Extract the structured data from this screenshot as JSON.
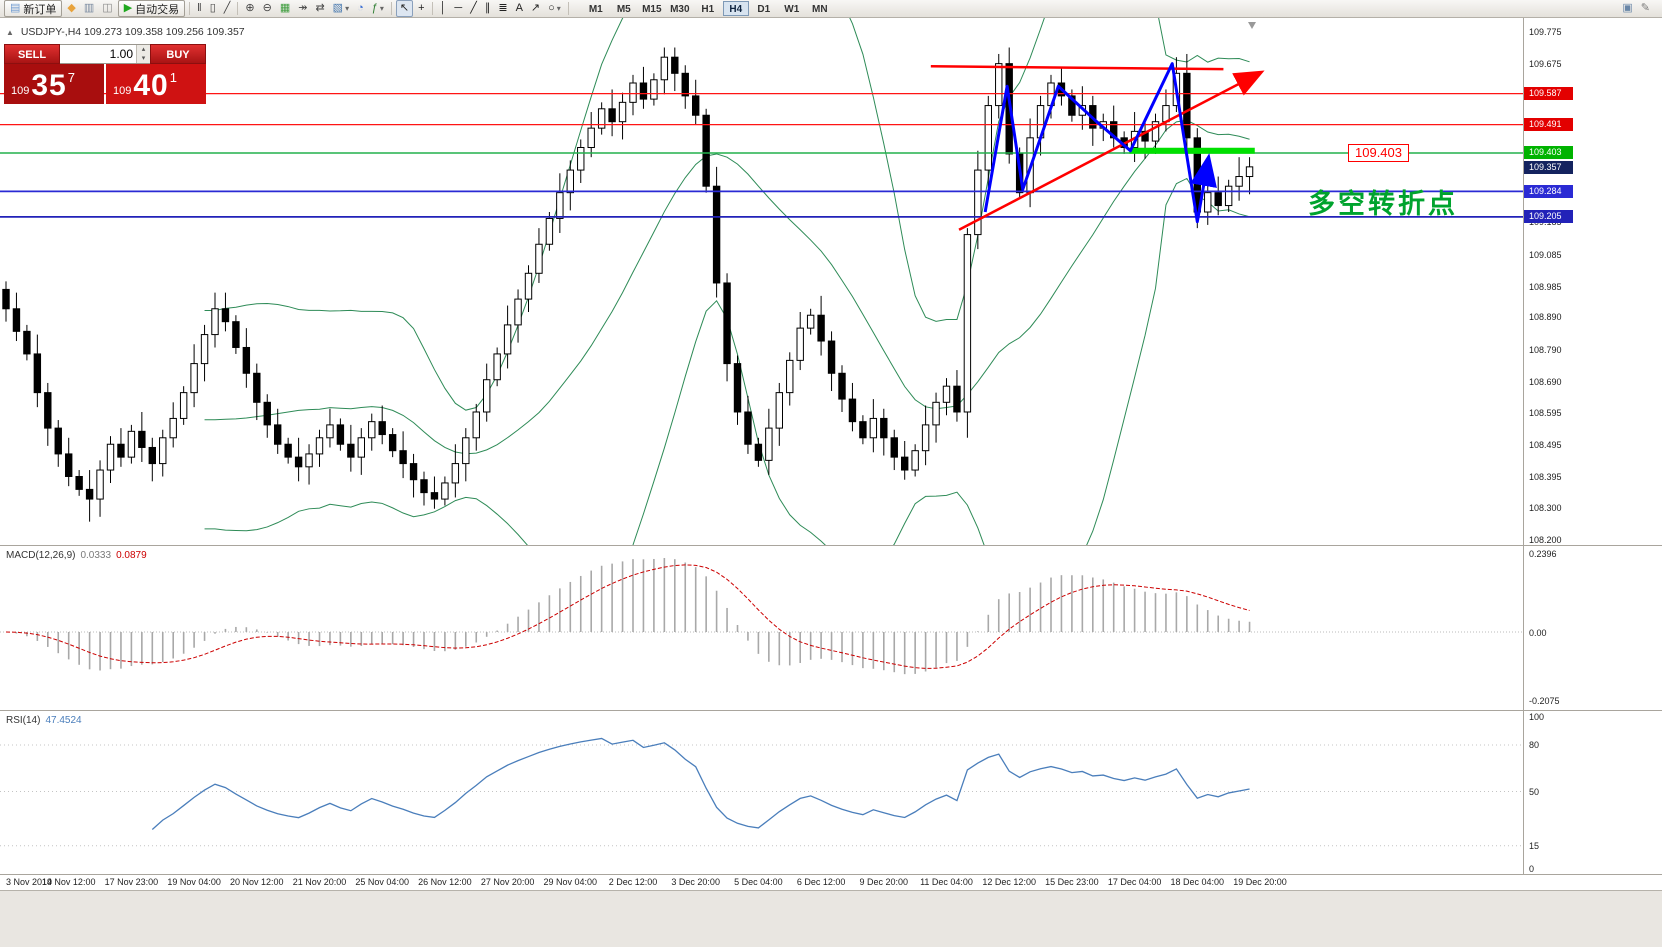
{
  "toolbar": {
    "items_left": [
      {
        "name": "new-order-button",
        "glyph": "▤",
        "glyph_color": "#6f9bd1",
        "label": "新订单",
        "button": true
      },
      {
        "name": "metaeditor-icon",
        "glyph": "◆",
        "glyph_color": "#e8a33d"
      },
      {
        "name": "market-watch-icon",
        "glyph": "▥",
        "glyph_color": "#7a8aa0"
      },
      {
        "name": "data-window-icon",
        "glyph": "◫",
        "glyph_color": "#8a8a8a"
      },
      {
        "name": "autotrading-button",
        "glyph": "▶",
        "glyph_color": "#1fa81f",
        "label": "自动交易",
        "button": true
      },
      {
        "sep": true
      },
      {
        "name": "bar-chart-icon",
        "glyph": "‖",
        "glyph_color": "#444444"
      },
      {
        "name": "candlestick-chart-icon",
        "glyph": "▯",
        "glyph_color": "#444444"
      },
      {
        "name": "line-chart-icon",
        "glyph": "╱",
        "glyph_color": "#444444"
      },
      {
        "sep": true
      },
      {
        "name": "zoom-in-icon",
        "glyph": "⊕",
        "glyph_color": "#444444"
      },
      {
        "name": "zoom-out-icon",
        "glyph": "⊖",
        "glyph_color": "#444444"
      },
      {
        "name": "tile-windows-icon",
        "glyph": "▦",
        "glyph_color": "#3c9c3c"
      },
      {
        "name": "auto-scroll-icon",
        "glyph": "↠",
        "glyph_color": "#444444"
      },
      {
        "name": "chart-shift-icon",
        "glyph": "⇄",
        "glyph_color": "#444444"
      },
      {
        "name": "profiles-icon",
        "glyph": "▧",
        "glyph_color": "#4a7ab0",
        "caret": true
      },
      {
        "name": "period-clock-icon",
        "glyph": "◔",
        "glyph_color": "#3b6fd4"
      },
      {
        "name": "indicators-icon",
        "glyph": "ƒ",
        "glyph_color": "#2e7d32",
        "caret": true
      },
      {
        "sep": true
      },
      {
        "name": "cursor-icon",
        "glyph": "↖",
        "glyph_color": "#222222",
        "active": true
      },
      {
        "name": "crosshair-icon",
        "glyph": "+",
        "glyph_color": "#222222"
      },
      {
        "sep": true
      },
      {
        "name": "vertical-line-icon",
        "glyph": "│",
        "glyph_color": "#222222"
      },
      {
        "name": "horizontal-line-icon",
        "glyph": "─",
        "glyph_color": "#222222"
      },
      {
        "name": "trendline-icon",
        "glyph": "╱",
        "glyph_color": "#222222"
      },
      {
        "name": "equidistant-channel-icon",
        "glyph": "∥",
        "glyph_color": "#222222"
      },
      {
        "name": "fibonacci-icon",
        "glyph": "≣",
        "glyph_color": "#222222"
      },
      {
        "name": "text-icon",
        "glyph": "A",
        "glyph_color": "#222222"
      },
      {
        "name": "arrows-icon",
        "glyph": "↗",
        "glyph_color": "#222222"
      },
      {
        "name": "shapes-icon",
        "glyph": "○",
        "glyph_color": "#222222",
        "caret": true
      },
      {
        "sep": true
      }
    ],
    "timeframes": [
      "M1",
      "M5",
      "M15",
      "M30",
      "H1",
      "H4",
      "D1",
      "W1",
      "MN"
    ],
    "active_timeframe": "H4",
    "items_right": [
      {
        "name": "layout-icon",
        "glyph": "▣",
        "glyph_color": "#6a87a8"
      },
      {
        "name": "compose-icon",
        "glyph": "✎",
        "glyph_color": "#7a7a7a"
      }
    ]
  },
  "chart": {
    "collapse_toggle": "▲",
    "symbol_info": "USDJPY-,H4  109.273 109.358 109.256 109.357"
  },
  "trade_panel": {
    "sell_label": "SELL",
    "buy_label": "BUY",
    "volume": "1.00",
    "sell_price": {
      "small": "109",
      "big": "35",
      "sup": "7"
    },
    "buy_price": {
      "small": "109",
      "big": "40",
      "sup": "1"
    }
  },
  "annotation": {
    "text": "多空转折点",
    "color": "#00a32e"
  },
  "float_tag": {
    "text": "109.403",
    "color": "#ff0000"
  },
  "price_scale": {
    "ticks": [
      {
        "text": "109.775",
        "price": 109.775
      },
      {
        "text": "109.675",
        "price": 109.675
      },
      {
        "text": "109.185",
        "price": 109.185
      },
      {
        "text": "109.085",
        "price": 109.085
      },
      {
        "text": "108.985",
        "price": 108.985
      },
      {
        "text": "108.890",
        "price": 108.89
      },
      {
        "text": "108.790",
        "price": 108.79
      },
      {
        "text": "108.690",
        "price": 108.69
      },
      {
        "text": "108.595",
        "price": 108.595
      },
      {
        "text": "108.495",
        "price": 108.495
      },
      {
        "text": "108.395",
        "price": 108.395
      },
      {
        "text": "108.300",
        "price": 108.3
      },
      {
        "text": "108.200",
        "price": 108.2
      }
    ],
    "chips": [
      {
        "text": "109.587",
        "price": 109.587,
        "bg": "#e30000",
        "fg": "#ffffff"
      },
      {
        "text": "109.491",
        "price": 109.491,
        "bg": "#e30000",
        "fg": "#ffffff"
      },
      {
        "text": "109.403",
        "price": 109.403,
        "bg": "#00b300",
        "fg": "#ffffff"
      },
      {
        "text": "109.357",
        "price": 109.357,
        "bg": "#14235f",
        "fg": "#ffffff"
      },
      {
        "text": "109.284",
        "price": 109.284,
        "bg": "#2a2ad4",
        "fg": "#ffffff"
      },
      {
        "text": "109.205",
        "price": 109.205,
        "bg": "#2222b8",
        "fg": "#ffffff"
      }
    ]
  },
  "indicator_macd": {
    "label": "MACD(12,26,9)",
    "value_main": "0.0333",
    "value_signal": "0.0879",
    "scale": [
      {
        "text": "0.2396",
        "value": 0.2396
      },
      {
        "text": "0.00",
        "value": 0
      },
      {
        "text": "-0.2075",
        "value": -0.2075
      }
    ]
  },
  "indicator_rsi": {
    "label": "RSI(14)",
    "value": "47.4524",
    "scale": [
      {
        "text": "100",
        "value": 100
      },
      {
        "text": "80",
        "value": 80
      },
      {
        "text": "50",
        "value": 50
      },
      {
        "text": "15",
        "value": 15
      },
      {
        "text": "0",
        "value": 0
      }
    ]
  },
  "chart_data": {
    "type": "candlestick",
    "symbol": "USDJPY",
    "timeframe": "H4",
    "title": "USDJPY-,H4",
    "ohlc_header": {
      "open": "109.273",
      "high": "109.358",
      "low": "109.256",
      "close": "109.357"
    },
    "price_range": [
      108.2,
      109.775
    ],
    "open_first": 108.98,
    "closes": [
      108.92,
      108.85,
      108.78,
      108.66,
      108.55,
      108.47,
      108.4,
      108.36,
      108.33,
      108.42,
      108.5,
      108.46,
      108.54,
      108.49,
      108.44,
      108.52,
      108.58,
      108.66,
      108.75,
      108.84,
      108.92,
      108.88,
      108.8,
      108.72,
      108.63,
      108.56,
      108.5,
      108.46,
      108.43,
      108.47,
      108.52,
      108.56,
      108.5,
      108.46,
      108.52,
      108.57,
      108.53,
      108.48,
      108.44,
      108.39,
      108.35,
      108.33,
      108.38,
      108.44,
      108.52,
      108.6,
      108.7,
      108.78,
      108.87,
      108.95,
      109.03,
      109.12,
      109.2,
      109.28,
      109.35,
      109.42,
      109.48,
      109.54,
      109.5,
      109.56,
      109.62,
      109.57,
      109.63,
      109.7,
      109.65,
      109.58,
      109.52,
      109.3,
      109.0,
      108.75,
      108.6,
      108.5,
      108.45,
      108.55,
      108.66,
      108.76,
      108.86,
      108.9,
      108.82,
      108.72,
      108.64,
      108.57,
      108.52,
      108.58,
      108.52,
      108.46,
      108.42,
      108.48,
      108.56,
      108.63,
      108.68,
      108.6,
      109.15,
      109.35,
      109.55,
      109.68,
      109.4,
      109.28,
      109.45,
      109.55,
      109.62,
      109.58,
      109.52,
      109.55,
      109.48,
      109.5,
      109.45,
      109.42,
      109.47,
      109.44,
      109.5,
      109.55,
      109.65,
      109.45,
      109.22,
      109.28,
      109.24,
      109.3,
      109.33,
      109.36
    ],
    "wick_overrides": {
      "8": {
        "low": 108.26
      },
      "20": {
        "high": 108.97
      },
      "41": {
        "low": 108.3
      },
      "63": {
        "high": 109.73
      },
      "92": {
        "low": 108.52
      },
      "95": {
        "high": 109.71
      },
      "112": {
        "high": 109.7
      },
      "114": {
        "low": 109.17
      }
    },
    "indicators": {
      "bollinger": {
        "period": 20,
        "deviation": 2
      },
      "macd": [
        12,
        26,
        9
      ],
      "rsi": [
        14
      ]
    },
    "overlays": {
      "hlines": [
        {
          "price": 109.587,
          "color": "#ff1414",
          "width": 1.2
        },
        {
          "price": 109.491,
          "color": "#ff1414",
          "width": 1.2
        },
        {
          "price": 109.403,
          "color": "#22b14c",
          "width": 1.5
        },
        {
          "price": 109.284,
          "color": "#2a2ad4",
          "width": 1.8
        },
        {
          "price": 109.205,
          "color": "#2222b8",
          "width": 1.8
        }
      ],
      "green_bar": {
        "price": 109.41,
        "from_index": 107.5,
        "to_index": 119.5,
        "color": "#00e000",
        "width": 6
      },
      "trendlines": [
        {
          "points": [
            [
              88.5,
              109.672
            ],
            [
              116.5,
              109.663
            ]
          ],
          "color": "#ff0000",
          "width": 2.5,
          "arrow_end": false
        },
        {
          "points": [
            [
              91.2,
              109.165
            ],
            [
              119.8,
              109.648
            ]
          ],
          "color": "#ff0000",
          "width": 2.5,
          "arrow_end": true
        }
      ],
      "zigzag": {
        "color": "#0000ff",
        "width": 3,
        "points": [
          [
            93.7,
            109.22
          ],
          [
            95.8,
            109.61
          ],
          [
            97.3,
            109.29
          ],
          [
            100.7,
            109.61
          ],
          [
            104.2,
            109.505
          ],
          [
            107.6,
            109.41
          ],
          [
            111.6,
            109.68
          ],
          [
            114.0,
            109.19
          ],
          [
            115.0,
            109.375
          ]
        ]
      }
    },
    "time_labels": [
      "3 Nov 2019",
      "14 Nov 12:00",
      "17 Nov 23:00",
      "19 Nov 04:00",
      "20 Nov 12:00",
      "21 Nov 20:00",
      "25 Nov 04:00",
      "26 Nov 12:00",
      "27 Nov 20:00",
      "29 Nov 04:00",
      "2 Dec 12:00",
      "3 Dec 20:00",
      "5 Dec 04:00",
      "6 Dec 12:00",
      "9 Dec 20:00",
      "11 Dec 04:00",
      "12 Dec 12:00",
      "15 Dec 23:00",
      "17 Dec 04:00",
      "18 Dec 04:00",
      "19 Dec 20:00"
    ]
  }
}
